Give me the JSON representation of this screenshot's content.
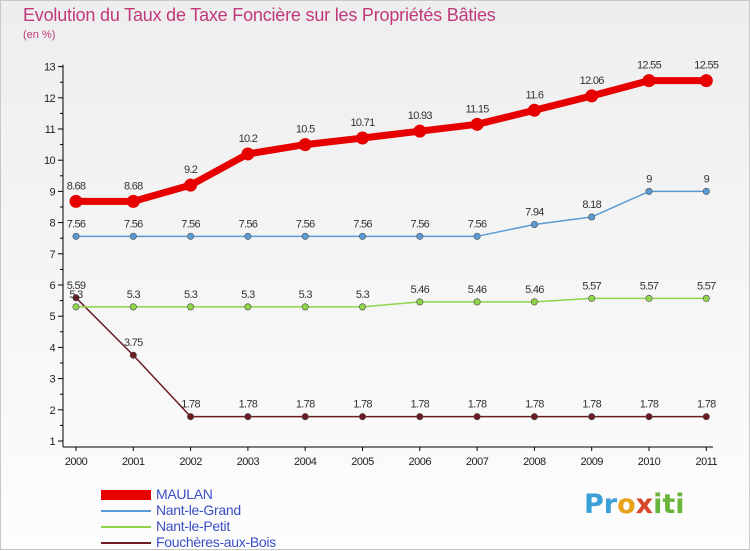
{
  "page": {
    "title": "Evolution du Taux de Taxe Foncière sur les Propriétés Bâties",
    "unit": "(en %)"
  },
  "chart_data": {
    "type": "line",
    "title": "Evolution du Taux de Taxe Foncière sur les Propriétés Bâties",
    "ylabel": "(en %)",
    "xlabel": "",
    "categories": [
      "2000",
      "2001",
      "2002",
      "2003",
      "2004",
      "2005",
      "2006",
      "2007",
      "2008",
      "2009",
      "2010",
      "2011"
    ],
    "ylim": [
      1,
      13
    ],
    "yticks": [
      1,
      2,
      3,
      4,
      5,
      6,
      7,
      8,
      9,
      10,
      11,
      12,
      13
    ],
    "grid": false,
    "legend_position": "bottom-left",
    "series": [
      {
        "name": "MAULAN",
        "color": "#e60000",
        "values": [
          8.68,
          8.68,
          9.2,
          10.2,
          10.5,
          10.71,
          10.93,
          11.15,
          11.6,
          12.06,
          12.55,
          12.55
        ],
        "labels": [
          "8.68",
          "8.68",
          "9.2",
          "10.2",
          "10.5",
          "10.71",
          "10.93",
          "11.15",
          "11.6",
          "12.06",
          "12.55",
          "12.55"
        ]
      },
      {
        "name": "Nant-le-Grand",
        "color": "#5b9bd5",
        "values": [
          7.56,
          7.56,
          7.56,
          7.56,
          7.56,
          7.56,
          7.56,
          7.56,
          7.94,
          8.18,
          9,
          9
        ],
        "labels": [
          "7.56",
          "7.56",
          "7.56",
          "7.56",
          "7.56",
          "7.56",
          "7.56",
          "7.56",
          "7.94",
          "8.18",
          "9",
          "9"
        ]
      },
      {
        "name": "Nant-le-Petit",
        "color": "#8fd44a",
        "values": [
          5.3,
          5.3,
          5.3,
          5.3,
          5.3,
          5.3,
          5.46,
          5.46,
          5.46,
          5.57,
          5.57,
          5.57
        ],
        "labels": [
          "5.3",
          "5.3",
          "5.3",
          "5.3",
          "5.3",
          "5.3",
          "5.46",
          "5.46",
          "5.46",
          "5.57",
          "5.57",
          "5.57"
        ]
      },
      {
        "name": "Fouchères-aux-Bois",
        "color": "#6b1d22",
        "values": [
          5.59,
          3.75,
          1.78,
          1.78,
          1.78,
          1.78,
          1.78,
          1.78,
          1.78,
          1.78,
          1.78,
          1.78
        ],
        "labels": [
          "5.59",
          "3.75",
          "1.78",
          "1.78",
          "1.78",
          "1.78",
          "1.78",
          "1.78",
          "1.78",
          "1.78",
          "1.78",
          "1.78"
        ]
      }
    ]
  },
  "logo": {
    "parts": [
      "Pr",
      "o",
      "x",
      "iti"
    ]
  }
}
